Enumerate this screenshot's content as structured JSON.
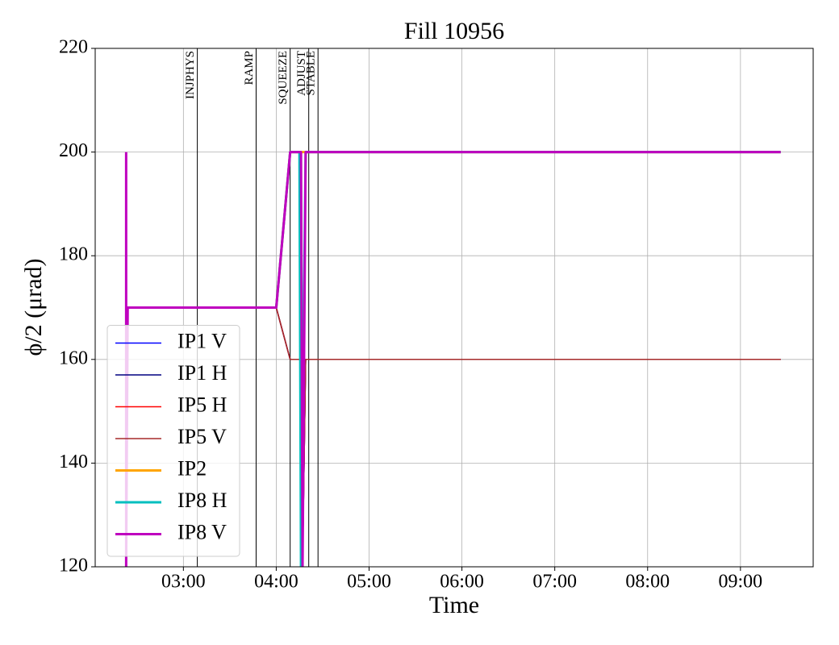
{
  "chart_data": {
    "type": "line",
    "title": "Fill 10956",
    "xlabel": "Time",
    "ylabel": "ϕ/2 (μrad)",
    "xlim": [
      "02:03",
      "09:47"
    ],
    "xticks": [
      "03:00",
      "04:00",
      "05:00",
      "06:00",
      "07:00",
      "08:00",
      "09:00"
    ],
    "ylim": [
      120,
      220
    ],
    "yticks": [
      120,
      140,
      160,
      180,
      200,
      220
    ],
    "grid": true,
    "legend": "lower left",
    "phases": [
      {
        "label": "INJPHYS",
        "time": "03:09"
      },
      {
        "label": "RAMP",
        "time": "03:47"
      },
      {
        "label": "SQUEEZE",
        "time": "04:09"
      },
      {
        "label": "ADJUST",
        "time": "04:21"
      },
      {
        "label": "STABLE",
        "time": "04:27"
      }
    ],
    "series": [
      {
        "name": "IP1 V",
        "color": "#0000ff",
        "linewidth": 1.5,
        "x": [
          "02:24",
          "04:00",
          "04:09",
          "04:16",
          "04:17",
          "04:19",
          "09:26"
        ],
        "values": [
          170,
          170,
          160,
          160,
          120,
          160,
          160
        ]
      },
      {
        "name": "IP1 H",
        "color": "#000080",
        "linewidth": 1.5,
        "x": [
          "02:24",
          "04:00",
          "04:09",
          "04:16",
          "04:17",
          "04:19",
          "09:26"
        ],
        "values": [
          170,
          170,
          160,
          160,
          120,
          160,
          160
        ]
      },
      {
        "name": "IP5 H",
        "color": "#ff0000",
        "linewidth": 1.5,
        "x": [
          "02:24",
          "04:00",
          "04:09",
          "04:16",
          "04:17",
          "04:19",
          "09:26"
        ],
        "values": [
          170,
          170,
          160,
          160,
          120,
          160,
          160
        ]
      },
      {
        "name": "IP5 V",
        "color": "#a52a2a",
        "linewidth": 1.5,
        "x": [
          "02:24",
          "04:00",
          "04:09",
          "04:16",
          "04:17",
          "04:19",
          "09:26"
        ],
        "values": [
          170,
          170,
          160,
          160,
          120,
          160,
          160
        ]
      },
      {
        "name": "IP2",
        "color": "#ffa500",
        "linewidth": 3,
        "x": [
          "02:24",
          "04:00",
          "04:09",
          "04:19",
          "09:26"
        ],
        "values": [
          170,
          170,
          200,
          200,
          200
        ]
      },
      {
        "name": "IP8 H",
        "color": "#00bfbf",
        "linewidth": 3,
        "x": [
          "02:24",
          "04:00",
          "04:09",
          "04:15",
          "04:16",
          "04:19",
          "09:26"
        ],
        "values": [
          170,
          170,
          200,
          200,
          120,
          200,
          200
        ]
      },
      {
        "name": "IP8 V",
        "color": "#bf00bf",
        "linewidth": 3,
        "x": [
          "02:23",
          "02:23",
          "02:24",
          "04:00",
          "04:09",
          "04:16",
          "04:17",
          "04:19",
          "09:26"
        ],
        "values": [
          200,
          120,
          170,
          170,
          200,
          200,
          120,
          200,
          200
        ]
      }
    ]
  }
}
